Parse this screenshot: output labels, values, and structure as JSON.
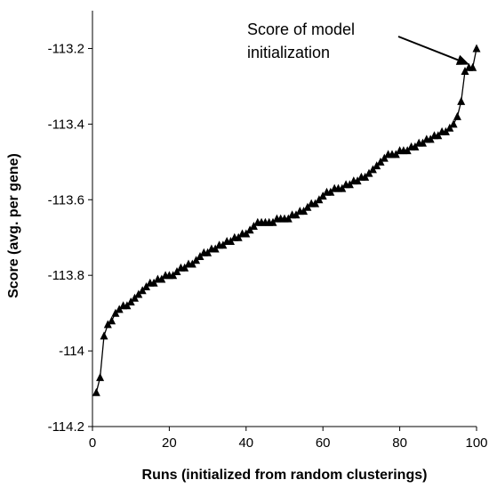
{
  "chart_data": {
    "type": "line",
    "title": "",
    "xlabel": "Runs (initialized from random clusterings)",
    "ylabel": "Score (avg. per gene)",
    "xlim": [
      0,
      100
    ],
    "ylim": [
      -114.2,
      -113.1
    ],
    "xticks": [
      0,
      20,
      40,
      60,
      80,
      100
    ],
    "yticks": [
      -114.2,
      -114,
      -113.8,
      -113.6,
      -113.4,
      -113.2
    ],
    "xtick_labels": [
      "0",
      "20",
      "40",
      "60",
      "80",
      "100"
    ],
    "ytick_labels": [
      "-114.2",
      "-114",
      "-113.8",
      "-113.6",
      "-113.4",
      "-113.2"
    ],
    "grid": false,
    "marker": "triangle",
    "series": [
      {
        "x": [
          1,
          2,
          3,
          4,
          5,
          6,
          7,
          8,
          9,
          10,
          11,
          12,
          13,
          14,
          15,
          16,
          17,
          18,
          19,
          20,
          21,
          22,
          23,
          24,
          25,
          26,
          27,
          28,
          29,
          30,
          31,
          32,
          33,
          34,
          35,
          36,
          37,
          38,
          39,
          40,
          41,
          42,
          43,
          44,
          45,
          46,
          47,
          48,
          49,
          50,
          51,
          52,
          53,
          54,
          55,
          56,
          57,
          58,
          59,
          60,
          61,
          62,
          63,
          64,
          65,
          66,
          67,
          68,
          69,
          70,
          71,
          72,
          73,
          74,
          75,
          76,
          77,
          78,
          79,
          80,
          81,
          82,
          83,
          84,
          85,
          86,
          87,
          88,
          89,
          90,
          91,
          92,
          93,
          94,
          95,
          96,
          97,
          98,
          99,
          100
        ],
        "values": [
          -114.11,
          -114.07,
          -113.96,
          -113.93,
          -113.92,
          -113.9,
          -113.89,
          -113.88,
          -113.88,
          -113.87,
          -113.86,
          -113.85,
          -113.84,
          -113.83,
          -113.82,
          -113.82,
          -113.81,
          -113.81,
          -113.8,
          -113.8,
          -113.8,
          -113.79,
          -113.78,
          -113.78,
          -113.77,
          -113.77,
          -113.76,
          -113.75,
          -113.74,
          -113.74,
          -113.73,
          -113.73,
          -113.72,
          -113.72,
          -113.71,
          -113.71,
          -113.7,
          -113.7,
          -113.69,
          -113.69,
          -113.68,
          -113.67,
          -113.66,
          -113.66,
          -113.66,
          -113.66,
          -113.66,
          -113.65,
          -113.65,
          -113.65,
          -113.65,
          -113.64,
          -113.64,
          -113.63,
          -113.63,
          -113.62,
          -113.61,
          -113.61,
          -113.6,
          -113.59,
          -113.58,
          -113.58,
          -113.57,
          -113.57,
          -113.57,
          -113.56,
          -113.56,
          -113.55,
          -113.55,
          -113.54,
          -113.54,
          -113.53,
          -113.52,
          -113.51,
          -113.5,
          -113.49,
          -113.48,
          -113.48,
          -113.48,
          -113.47,
          -113.47,
          -113.47,
          -113.46,
          -113.46,
          -113.45,
          -113.45,
          -113.44,
          -113.44,
          -113.43,
          -113.43,
          -113.42,
          -113.42,
          -113.41,
          -113.4,
          -113.38,
          -113.34,
          -113.26,
          -113.25,
          -113.25,
          -113.2
        ]
      }
    ],
    "annotation": {
      "text_line1": "Score of model",
      "text_line2": "initialization",
      "target_x": 100,
      "target_y": -113.2
    }
  }
}
